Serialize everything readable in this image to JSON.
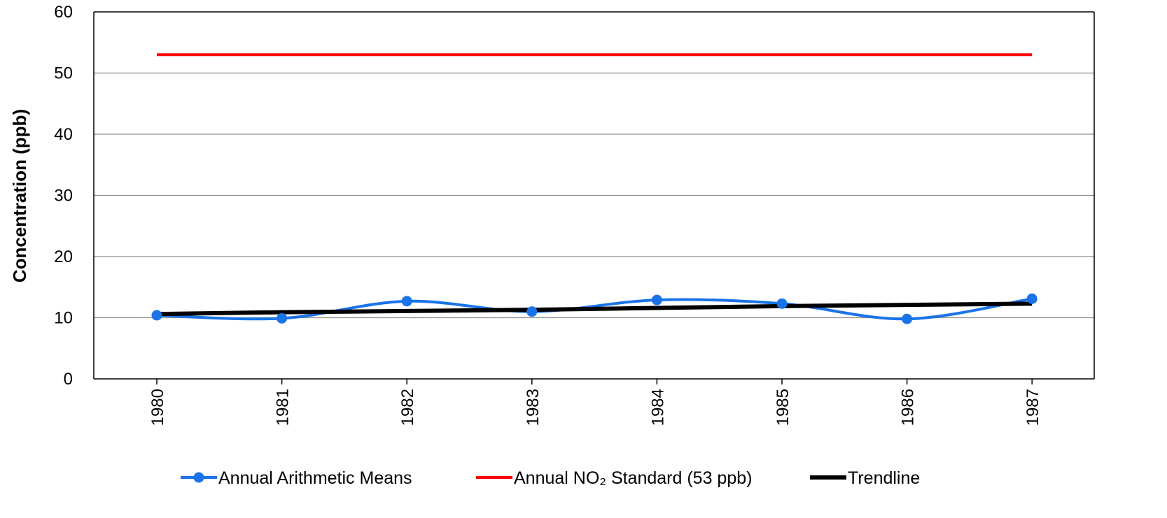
{
  "chart_data": {
    "type": "line",
    "title": "",
    "xlabel": "",
    "ylabel": "Concentration (ppb)",
    "x": [
      "1980",
      "1981",
      "1982",
      "1983",
      "1984",
      "1985",
      "1986",
      "1987"
    ],
    "ylim": [
      0,
      60
    ],
    "yticks": [
      0,
      10,
      20,
      30,
      40,
      50,
      60
    ],
    "grid": true,
    "legend_position": "bottom",
    "series": [
      {
        "name": "Annual Arithmetic Means",
        "color": "#1a73e8",
        "style": "smooth-line-with-markers",
        "values": [
          10.4,
          9.9,
          12.7,
          11.0,
          12.9,
          12.3,
          9.8,
          13.1
        ]
      },
      {
        "name": "Annual NO₂ Standard (53 ppb)",
        "color": "#ff0000",
        "style": "line",
        "values": [
          53,
          53,
          53,
          53,
          53,
          53,
          53,
          53
        ]
      },
      {
        "name": "Trendline",
        "color": "#000000",
        "style": "line",
        "values": [
          10.6,
          10.9,
          11.1,
          11.3,
          11.6,
          11.9,
          12.1,
          12.3
        ]
      }
    ]
  }
}
